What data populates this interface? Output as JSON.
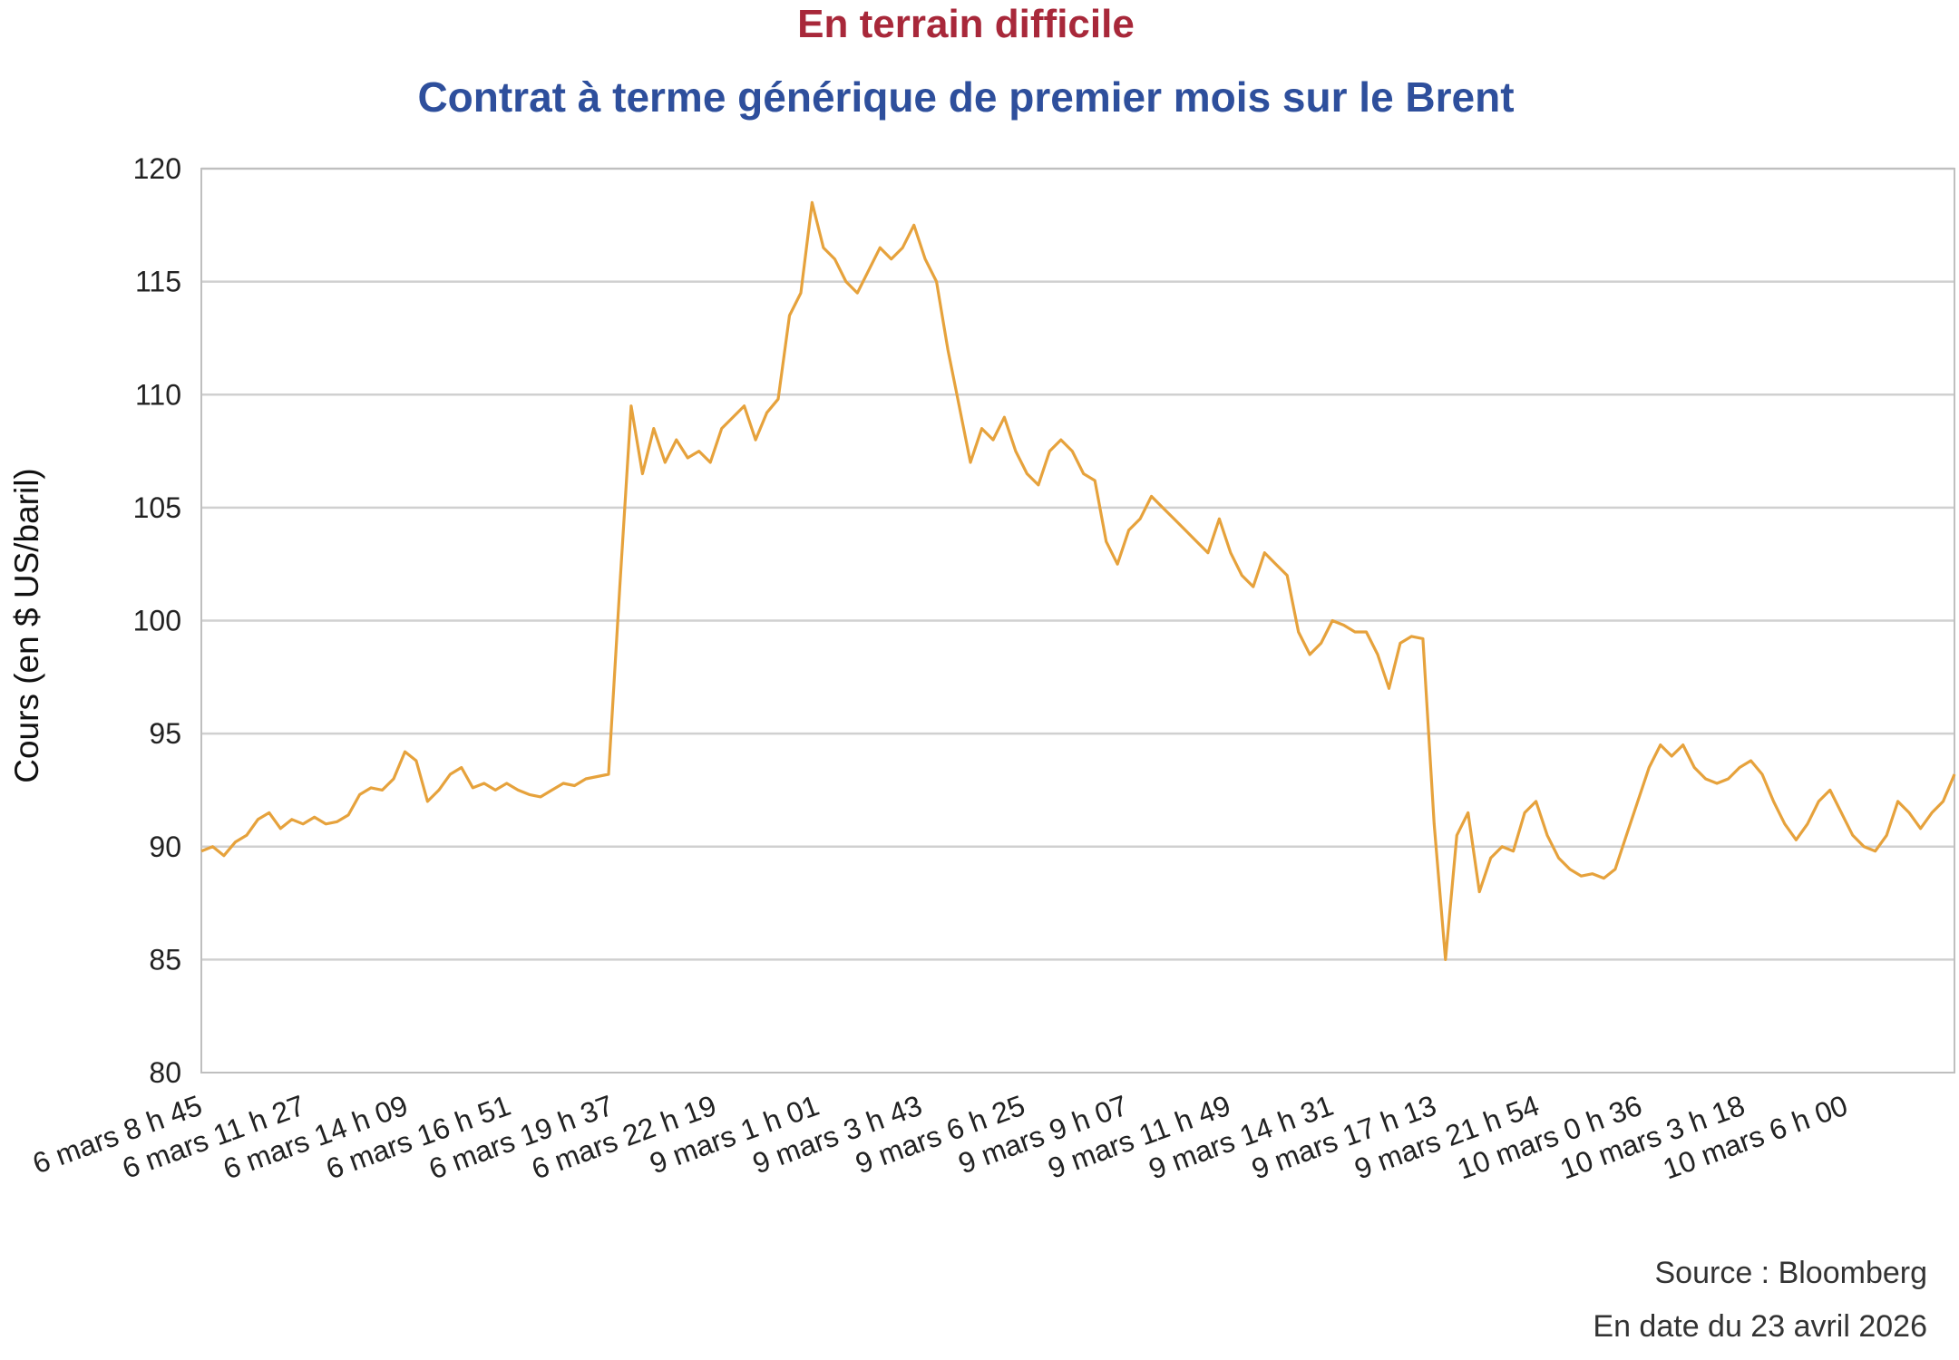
{
  "chart_data": {
    "type": "line",
    "title": "En terrain difficile",
    "subtitle": "Contrat à terme générique de premier mois sur le Brent",
    "ylabel": "Cours (en $ US/baril)",
    "xlabel": "",
    "ylim": [
      80,
      120
    ],
    "yticks": [
      80,
      85,
      90,
      95,
      100,
      105,
      110,
      115,
      120
    ],
    "grid": true,
    "legend": "none",
    "line_color": "#e6a23c",
    "xticks": [
      "6 mars 8 h 45",
      "6 mars 11 h 27",
      "6 mars 14 h 09",
      "6 mars 16 h 51",
      "6 mars 19 h 37",
      "6 mars 22 h 19",
      "9 mars 1 h 01",
      "9 mars 3 h 43",
      "9 mars 6 h 25",
      "9 mars 9 h 07",
      "9 mars 11 h 49",
      "9 mars 14 h 31",
      "9 mars 17 h 13",
      "9 mars 21 h 54",
      "10 mars 0 h 36",
      "10 mars 3 h 18",
      "10 mars 6 h 00"
    ],
    "series": [
      {
        "values": [
          89.8,
          90.0,
          89.6,
          90.2,
          90.5,
          91.2,
          91.5,
          90.8,
          91.2,
          91.0,
          91.3,
          91.0,
          91.1,
          91.4,
          92.3,
          92.6,
          92.5,
          93.0,
          94.2,
          93.8,
          92.0,
          92.5,
          93.2,
          93.5,
          92.6,
          92.8,
          92.5,
          92.8,
          92.5,
          92.3,
          92.2,
          92.5,
          92.8,
          92.7,
          93.0,
          93.1,
          93.2,
          101.5,
          109.5,
          106.5,
          108.5,
          107.0,
          108.0,
          107.2,
          107.5,
          107.0,
          108.5,
          109.0,
          109.5,
          108.0,
          109.2,
          109.8,
          113.5,
          114.5,
          118.5,
          116.5,
          116.0,
          115.0,
          114.5,
          115.5,
          116.5,
          116.0,
          116.5,
          117.5,
          116.0,
          115.0,
          112.0,
          109.5,
          107.0,
          108.5,
          108.0,
          109.0,
          107.5,
          106.5,
          106.0,
          107.5,
          108.0,
          107.5,
          106.5,
          106.2,
          103.5,
          102.5,
          104.0,
          104.5,
          105.5,
          105.0,
          104.5,
          104.0,
          103.5,
          103.0,
          104.5,
          103.0,
          102.0,
          101.5,
          103.0,
          102.5,
          102.0,
          99.5,
          98.5,
          99.0,
          100.0,
          99.8,
          99.5,
          99.5,
          98.5,
          97.0,
          99.0,
          99.3,
          99.2,
          91.0,
          85.0,
          90.5,
          91.5,
          88.0,
          89.5,
          90.0,
          89.8,
          91.5,
          92.0,
          90.5,
          89.5,
          89.0,
          88.7,
          88.8,
          88.6,
          89.0,
          90.5,
          92.0,
          93.5,
          94.5,
          94.0,
          94.5,
          93.5,
          93.0,
          92.8,
          93.0,
          93.5,
          93.8,
          93.2,
          92.0,
          91.0,
          90.3,
          91.0,
          92.0,
          92.5,
          91.5,
          90.5,
          90.0,
          89.8,
          90.5,
          92.0,
          91.5,
          90.8,
          91.5,
          92.0,
          93.2
        ]
      }
    ]
  },
  "footer": {
    "source": "Source : Bloomberg",
    "as_of": "En date du 23 avril 2026"
  }
}
